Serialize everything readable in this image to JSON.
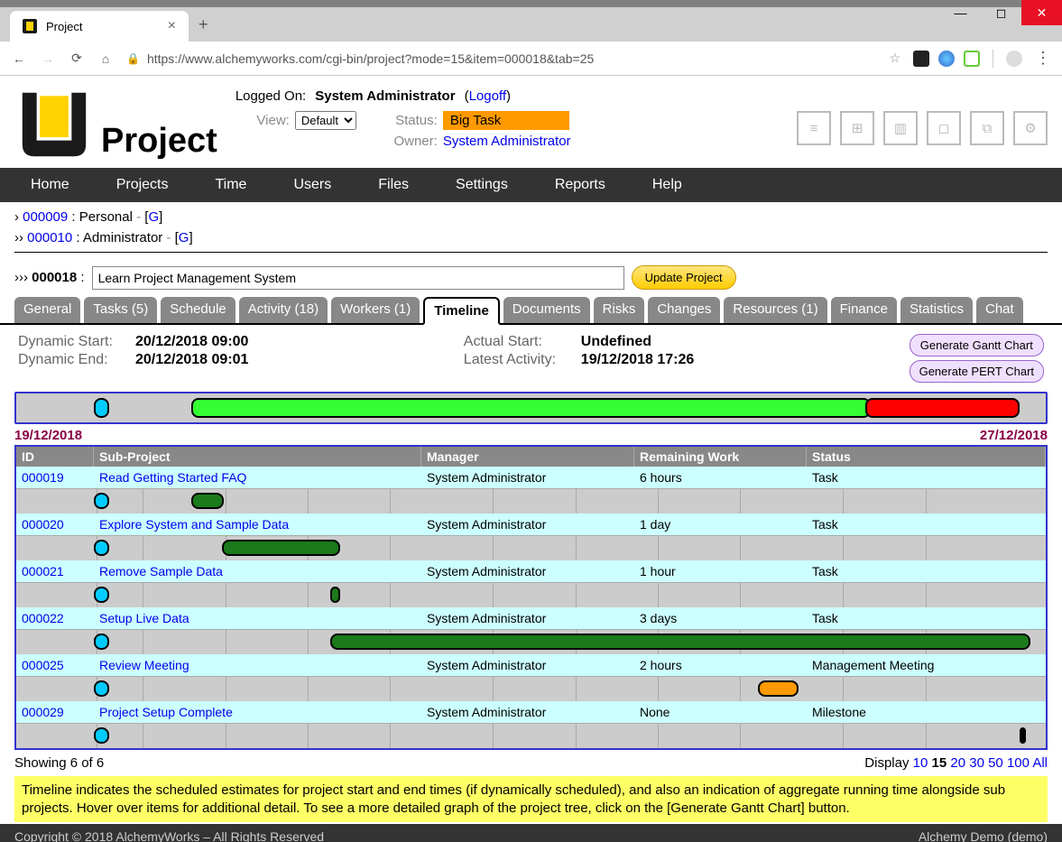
{
  "browser": {
    "tab_title": "Project",
    "url": "https://www.alchemyworks.com/cgi-bin/project?mode=15&item=000018&tab=25"
  },
  "header": {
    "app_name": "Project",
    "logged_on_label": "Logged On:",
    "logged_on_user": "System Administrator",
    "logoff": "Logoff",
    "view_label": "View:",
    "view_value": "Default",
    "status_label": "Status:",
    "status_value": "Big Task",
    "owner_label": "Owner:",
    "owner_value": "System Administrator"
  },
  "nav": [
    "Home",
    "Projects",
    "Time",
    "Users",
    "Files",
    "Settings",
    "Reports",
    "Help"
  ],
  "breadcrumb": {
    "l1_id": "000009",
    "l1_name": "Personal",
    "l1_g": "G",
    "l2_id": "000010",
    "l2_name": "Administrator",
    "l2_g": "G",
    "l3_id": "000018",
    "l3_name": "Learn Project Management System",
    "update_btn": "Update Project"
  },
  "tabs": [
    "General",
    "Tasks (5)",
    "Schedule",
    "Activity (18)",
    "Workers (1)",
    "Timeline",
    "Documents",
    "Risks",
    "Changes",
    "Resources (1)",
    "Finance",
    "Statistics",
    "Chat"
  ],
  "active_tab": "Timeline",
  "info": {
    "dyn_start_lbl": "Dynamic Start:",
    "dyn_start": "20/12/2018 09:00",
    "dyn_end_lbl": "Dynamic End:",
    "dyn_end": "20/12/2018 09:01",
    "act_start_lbl": "Actual Start:",
    "act_start": "Undefined",
    "latest_lbl": "Latest Activity:",
    "latest": "19/12/2018 17:26",
    "gantt_btn": "Generate Gantt Chart",
    "pert_btn": "Generate PERT Chart"
  },
  "timeline": {
    "start_date": "19/12/2018",
    "end_date": "27/12/2018",
    "main_bars": [
      {
        "left_pct": 7.5,
        "width_pct": 1.5,
        "color": "#00ccff"
      },
      {
        "left_pct": 17,
        "width_pct": 66,
        "color": "#33ff33"
      },
      {
        "left_pct": 82.5,
        "width_pct": 15,
        "color": "#ff0000"
      }
    ],
    "grid_lines_pct": [
      7.8,
      12.3,
      20.3,
      28.3,
      36.3,
      46.3,
      54.3,
      62.3,
      70.3,
      80.3,
      88.3
    ]
  },
  "columns": {
    "id": "ID",
    "sub": "Sub-Project",
    "mgr": "Manager",
    "rem": "Remaining Work",
    "st": "Status"
  },
  "rows": [
    {
      "id": "000019",
      "sub": "Read Getting Started FAQ",
      "mgr": "System Administrator",
      "rem": "6 hours",
      "st": "Task",
      "bars": [
        {
          "left_pct": 7.5,
          "width_pct": 1.5,
          "color": "#00ccff"
        },
        {
          "left_pct": 17,
          "width_pct": 3.2,
          "color": "#1b7a1b"
        }
      ]
    },
    {
      "id": "000020",
      "sub": "Explore System and Sample Data",
      "mgr": "System Administrator",
      "rem": "1 day",
      "st": "Task",
      "bars": [
        {
          "left_pct": 7.5,
          "width_pct": 1.5,
          "color": "#00ccff"
        },
        {
          "left_pct": 20,
          "width_pct": 11.5,
          "color": "#1b7a1b"
        }
      ]
    },
    {
      "id": "000021",
      "sub": "Remove Sample Data",
      "mgr": "System Administrator",
      "rem": "1 hour",
      "st": "Task",
      "bars": [
        {
          "left_pct": 7.5,
          "width_pct": 1.5,
          "color": "#00ccff"
        },
        {
          "left_pct": 30.5,
          "width_pct": 1,
          "color": "#1b7a1b"
        }
      ]
    },
    {
      "id": "000022",
      "sub": "Setup Live Data",
      "mgr": "System Administrator",
      "rem": "3 days",
      "st": "Task",
      "bars": [
        {
          "left_pct": 7.5,
          "width_pct": 1.5,
          "color": "#00ccff"
        },
        {
          "left_pct": 30.5,
          "width_pct": 68,
          "color": "#1b7a1b"
        }
      ]
    },
    {
      "id": "000025",
      "sub": "Review Meeting",
      "mgr": "System Administrator",
      "rem": "2 hours",
      "st": "Management Meeting",
      "bars": [
        {
          "left_pct": 7.5,
          "width_pct": 1.5,
          "color": "#00ccff"
        },
        {
          "left_pct": 72,
          "width_pct": 4,
          "color": "#ff9900"
        }
      ]
    },
    {
      "id": "000029",
      "sub": "Project Setup Complete",
      "mgr": "System Administrator",
      "rem": "None",
      "st": "Milestone",
      "bars": [
        {
          "left_pct": 7.5,
          "width_pct": 1.5,
          "color": "#00ccff"
        },
        {
          "left_pct": 97.5,
          "width_pct": 0.6,
          "color": "#000000"
        }
      ]
    }
  ],
  "footer": {
    "showing": "Showing 6 of 6",
    "display_lbl": "Display",
    "display_opts": [
      "10",
      "15",
      "20",
      "30",
      "50",
      "100",
      "All"
    ],
    "display_cur": "15"
  },
  "help_text": "Timeline indicates the scheduled estimates for project start and end times (if dynamically scheduled), and also an indication of aggregate running time alongside sub projects. Hover over items for additional detail. To see a more detailed graph of the project tree, click on the [Generate Gantt Chart] button.",
  "copyright": {
    "left": "Copyright © 2018 AlchemyWorks – All Rights Reserved",
    "right": "Alchemy Demo (demo)"
  }
}
